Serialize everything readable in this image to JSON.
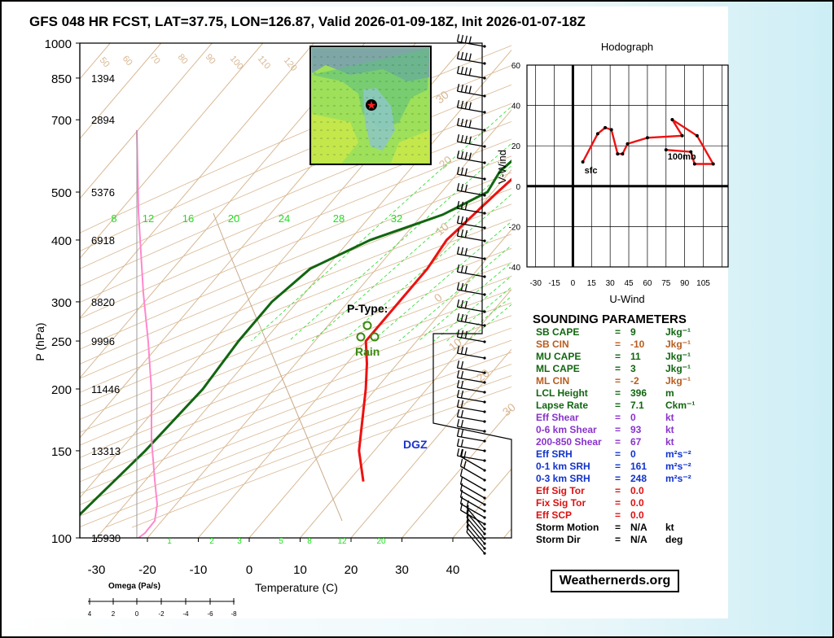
{
  "title": "GFS 048 HR FCST, LAT=37.75, LON=126.87, Valid 2026-01-09-18Z, Init 2026-01-07-18Z",
  "colors": {
    "temp": "#ee1111",
    "dew": "#116611",
    "wetbulb": "#ff88cc",
    "dgz": "#c8c8ff",
    "mixing": "#22dd22",
    "dry_adiabat": "#d8b893",
    "isotherm": "#d8b893"
  },
  "chart_data": [
    {
      "type": "line",
      "name": "skew-t",
      "xlabel": "Temperature (C)",
      "ylabel": "P (hPa)",
      "x_ticks": [
        "-30",
        "-20",
        "-10",
        "0",
        "10",
        "20",
        "30",
        "40"
      ],
      "y_ticks": [
        "100",
        "150",
        "200",
        "250",
        "300",
        "400",
        "500",
        "700",
        "850",
        "1000"
      ],
      "heights": [
        "15930",
        "13313",
        "11446",
        "9996",
        "8820",
        "6918",
        "5376",
        "2894",
        "1394"
      ],
      "mixing_ratio_labels": [
        "8",
        "12",
        "16",
        "20",
        "24",
        "28",
        "32"
      ],
      "mixing_ratio_bottom_labels": [
        "1",
        "2",
        "3",
        "5",
        "8",
        "12",
        "20"
      ],
      "isotherm_labels": [
        "30",
        "20",
        "10",
        "0",
        "10",
        "20",
        "30"
      ],
      "dry_adiabat_labels": [
        "50",
        "60",
        "70",
        "80",
        "90",
        "100",
        "110",
        "120"
      ],
      "dgz": {
        "label": "DGZ",
        "top_hpa": 630,
        "bottom_hpa": 730
      },
      "temperature": [
        [
          1000,
          6.5
        ],
        [
          975,
          5
        ],
        [
          925,
          1
        ],
        [
          850,
          -3
        ],
        [
          800,
          -5
        ],
        [
          750,
          -5.5
        ],
        [
          700,
          -5
        ],
        [
          650,
          -5
        ],
        [
          600,
          -6
        ],
        [
          550,
          -8
        ],
        [
          500,
          -9
        ],
        [
          400,
          -11
        ],
        [
          350,
          -10
        ],
        [
          300,
          -10
        ],
        [
          250,
          -10
        ],
        [
          225,
          -6
        ],
        [
          200,
          -2
        ],
        [
          150,
          7
        ],
        [
          130,
          13
        ]
      ],
      "dewpoint": [
        [
          1000,
          0.5
        ],
        [
          975,
          0
        ],
        [
          925,
          -2
        ],
        [
          850,
          -5
        ],
        [
          800,
          -4.5
        ],
        [
          750,
          -6
        ],
        [
          700,
          -12
        ],
        [
          650,
          -14
        ],
        [
          600,
          -11
        ],
        [
          550,
          -12
        ],
        [
          500,
          -11
        ],
        [
          450,
          -16
        ],
        [
          400,
          -26
        ],
        [
          350,
          -33
        ],
        [
          300,
          -35
        ],
        [
          250,
          -35
        ],
        [
          200,
          -34
        ],
        [
          150,
          -35
        ],
        [
          100,
          -38
        ]
      ],
      "omega": {
        "label": "Omega (Pa/s)",
        "ticks": [
          "4",
          "2",
          "0",
          "-2",
          "-4",
          "-6",
          "-8"
        ]
      },
      "ptype": {
        "label": "P-Type:",
        "value": "Rain"
      }
    },
    {
      "type": "line",
      "name": "hodograph",
      "title": "Hodograph",
      "xlabel": "U-Wind",
      "ylabel": "V-Wind",
      "x_ticks": [
        "-30",
        "-15",
        "0",
        "15",
        "30",
        "45",
        "60",
        "75",
        "90",
        "105"
      ],
      "y_ticks": [
        "60",
        "40",
        "20",
        "0",
        "-20",
        "-40"
      ],
      "xlim": [
        -37,
        125
      ],
      "ylim": [
        -40,
        60
      ],
      "points": [
        [
          8,
          12
        ],
        [
          20,
          26
        ],
        [
          26,
          29
        ],
        [
          31,
          28
        ],
        [
          36,
          16
        ],
        [
          40,
          16
        ],
        [
          44,
          21
        ],
        [
          60,
          24
        ],
        [
          88,
          25
        ],
        [
          80,
          33
        ],
        [
          100,
          25
        ],
        [
          113,
          11
        ],
        [
          98,
          11
        ],
        [
          95,
          17
        ],
        [
          75,
          18
        ]
      ],
      "labels": {
        "start": "sfc",
        "end": "100mb"
      }
    }
  ],
  "params": {
    "title": "SOUNDING PARAMETERS",
    "rows": [
      {
        "label": "SB CAPE",
        "value": "9",
        "unit": "Jkg⁻¹",
        "color": "#116611"
      },
      {
        "label": "SB CIN",
        "value": "-10",
        "unit": "Jkg⁻¹",
        "color": "#b85c1e"
      },
      {
        "label": "MU CAPE",
        "value": "11",
        "unit": "Jkg⁻¹",
        "color": "#116611"
      },
      {
        "label": "ML CAPE",
        "value": "3",
        "unit": "Jkg⁻¹",
        "color": "#116611"
      },
      {
        "label": "ML CIN",
        "value": "-2",
        "unit": "Jkg⁻¹",
        "color": "#b85c1e"
      },
      {
        "label": "LCL Height",
        "value": "396",
        "unit": "m",
        "color": "#116611"
      },
      {
        "label": "Lapse Rate",
        "value": "7.1",
        "unit": "Ckm⁻¹",
        "color": "#116611"
      },
      {
        "label": "Eff Shear",
        "value": "0",
        "unit": "kt",
        "color": "#8833cc"
      },
      {
        "label": "0-6 km Shear",
        "value": "93",
        "unit": "kt",
        "color": "#8833cc"
      },
      {
        "label": "200-850 Shear",
        "value": "67",
        "unit": "kt",
        "color": "#8833cc"
      },
      {
        "label": "Eff SRH",
        "value": "0",
        "unit": "m²s⁻²",
        "color": "#1133cc"
      },
      {
        "label": "0-1 km SRH",
        "value": "161",
        "unit": "m²s⁻²",
        "color": "#1133cc"
      },
      {
        "label": "0-3 km SRH",
        "value": "248",
        "unit": "m²s⁻²",
        "color": "#1133cc"
      },
      {
        "label": "Eff Sig Tor",
        "value": "0.0",
        "unit": "",
        "color": "#dd1111"
      },
      {
        "label": "Fix Sig Tor",
        "value": "0.0",
        "unit": "",
        "color": "#dd1111"
      },
      {
        "label": "Eff SCP",
        "value": "0.0",
        "unit": "",
        "color": "#dd1111"
      },
      {
        "label": "Storm Motion",
        "value": "N/A",
        "unit": "kt",
        "color": "#000000"
      },
      {
        "label": "Storm Dir",
        "value": "N/A",
        "unit": "deg",
        "color": "#000000"
      }
    ]
  },
  "logo": "Weathernerds.org"
}
